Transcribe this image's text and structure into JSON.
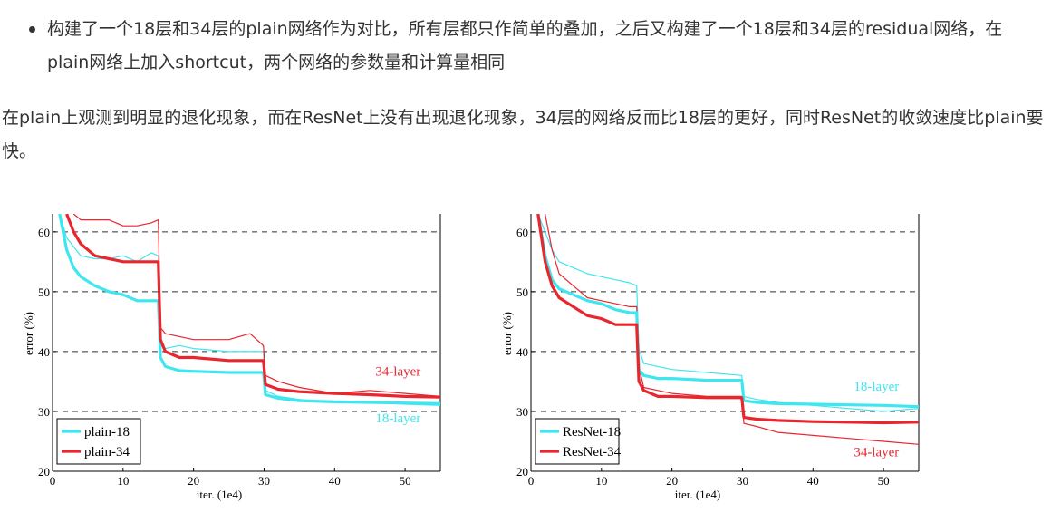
{
  "bullet": "构建了一个18层和34层的plain网络作为对比，所有层都只作简单的叠加，之后又构建了一个18层和34层的residual网络，在plain网络上加入shortcut，两个网络的参数量和计算量相同",
  "paragraph": "在plain上观测到明显的退化现象，而在ResNet上没有出现退化现象，34层的网络反而比18层的更好，同时ResNet的收敛速度比plain要快。",
  "colors": {
    "cyan": "#3ee6f0",
    "red": "#e8262e",
    "grid": "#333333"
  },
  "chart_data": [
    {
      "type": "line",
      "name": "plain",
      "xlabel": "iter. (1e4)",
      "ylabel": "error (%)",
      "xlim": [
        0,
        55
      ],
      "ylim": [
        20,
        63
      ],
      "xticks": [
        0,
        10,
        20,
        30,
        40,
        50
      ],
      "yticks": [
        20,
        30,
        40,
        50,
        60
      ],
      "legend": [
        "plain-18",
        "plain-34"
      ],
      "legend_position": "bottom-left",
      "annotations": [
        {
          "text": "34-layer",
          "color": "red",
          "x": 49,
          "y": 36
        },
        {
          "text": "18-layer",
          "color": "cyan",
          "x": 49,
          "y": 28.2
        }
      ],
      "series": [
        {
          "name": "plain-18 train",
          "color": "cyan",
          "width": "thick",
          "x": [
            1,
            2,
            3,
            4,
            6,
            8,
            10,
            12,
            14,
            15,
            15.3,
            16,
            18,
            20,
            25,
            29.9,
            30.2,
            32,
            35,
            40,
            45,
            50,
            55
          ],
          "y": [
            63,
            57,
            54,
            52.5,
            51,
            50,
            49.5,
            48.5,
            48.5,
            48.5,
            39,
            37.5,
            36.8,
            36.7,
            36.5,
            36.5,
            32.8,
            32.2,
            31.8,
            31.6,
            31.5,
            31.4,
            31.3
          ]
        },
        {
          "name": "plain-18 val",
          "color": "cyan",
          "width": "thin",
          "x": [
            1,
            2,
            4,
            6,
            8,
            10,
            12,
            14,
            15,
            15.3,
            16,
            18,
            20,
            25,
            29.9,
            30.2,
            32,
            35,
            40,
            45,
            50,
            55
          ],
          "y": [
            63,
            59,
            56,
            55.5,
            55.5,
            56,
            55,
            56.5,
            56,
            41,
            40.5,
            41,
            40.5,
            40,
            40,
            33.5,
            32.5,
            32,
            31.5,
            31.5,
            31.2,
            31
          ]
        },
        {
          "name": "plain-34 train",
          "color": "red",
          "width": "thick",
          "x": [
            2,
            3,
            4,
            6,
            8,
            10,
            12,
            14,
            15,
            15.3,
            16,
            18,
            20,
            25,
            29.9,
            30.2,
            32,
            35,
            40,
            45,
            50,
            55
          ],
          "y": [
            63,
            60,
            58,
            56,
            55.5,
            55,
            55,
            55,
            55,
            42,
            40,
            39,
            39,
            38.5,
            38.5,
            34.5,
            33.7,
            33.3,
            33,
            32.8,
            32.5,
            32.4
          ]
        },
        {
          "name": "plain-34 val",
          "color": "red",
          "width": "thin",
          "x": [
            3,
            4,
            6,
            8,
            10,
            12,
            14,
            15,
            15.3,
            16,
            18,
            20,
            25,
            28,
            29.9,
            30.2,
            32,
            35,
            40,
            45,
            50,
            55
          ],
          "y": [
            63,
            62,
            62,
            62,
            61,
            61,
            61.5,
            62,
            44,
            43,
            42.5,
            42,
            42,
            43,
            41,
            36,
            35,
            34,
            33,
            33.5,
            33,
            32.5
          ]
        }
      ]
    },
    {
      "type": "line",
      "name": "resnet",
      "xlabel": "iter. (1e4)",
      "ylabel": "error (%)",
      "xlim": [
        0,
        55
      ],
      "ylim": [
        20,
        63
      ],
      "xticks": [
        0,
        10,
        20,
        30,
        40,
        50
      ],
      "yticks": [
        20,
        30,
        40,
        50,
        60
      ],
      "legend": [
        "ResNet-18",
        "ResNet-34"
      ],
      "legend_position": "bottom-left",
      "annotations": [
        {
          "text": "18-layer",
          "color": "cyan",
          "x": 49,
          "y": 33.5
        },
        {
          "text": "34-layer",
          "color": "red",
          "x": 49,
          "y": 22.5
        }
      ],
      "series": [
        {
          "name": "ResNet-18 train",
          "color": "cyan",
          "width": "thick",
          "x": [
            1,
            2,
            3,
            4,
            6,
            8,
            10,
            12,
            14,
            15,
            15.3,
            16,
            18,
            20,
            25,
            29.9,
            30.2,
            32,
            35,
            40,
            45,
            50,
            55
          ],
          "y": [
            63,
            56,
            52,
            50.5,
            49.5,
            48.5,
            48,
            47,
            46.5,
            46.5,
            37,
            36,
            35.5,
            35.5,
            35.2,
            35.2,
            31.8,
            31.5,
            31.3,
            31.2,
            31.1,
            31,
            30.8
          ]
        },
        {
          "name": "ResNet-18 val",
          "color": "cyan",
          "width": "thin",
          "x": [
            1,
            2,
            3,
            4,
            6,
            8,
            10,
            12,
            14,
            15,
            15.3,
            16,
            18,
            20,
            25,
            29.9,
            30.2,
            32,
            35,
            40,
            45,
            50,
            55
          ],
          "y": [
            63,
            60,
            57,
            55,
            54,
            53,
            52.5,
            52,
            51.5,
            51,
            40.5,
            38,
            37.5,
            37,
            36.5,
            36,
            32.5,
            32,
            31.5,
            31,
            30.5,
            30,
            30.5
          ]
        },
        {
          "name": "ResNet-34 train",
          "color": "red",
          "width": "thick",
          "x": [
            1,
            2,
            3,
            4,
            6,
            8,
            10,
            12,
            14,
            15,
            15.3,
            16,
            18,
            20,
            25,
            29.9,
            30.2,
            32,
            35,
            40,
            45,
            50,
            55
          ],
          "y": [
            63,
            55,
            51,
            49,
            47.5,
            46,
            45.5,
            44.5,
            44.5,
            44.5,
            35,
            33.5,
            32.5,
            32.5,
            32.3,
            32.3,
            29,
            28.7,
            28.5,
            28.3,
            28.2,
            28.1,
            28.2
          ]
        },
        {
          "name": "ResNet-34 val",
          "color": "red",
          "width": "thin",
          "x": [
            2,
            3,
            4,
            6,
            8,
            10,
            12,
            14,
            15,
            15.3,
            16,
            18,
            20,
            25,
            29.9,
            30.2,
            32,
            35,
            40,
            45,
            50,
            55
          ],
          "y": [
            63,
            57,
            53,
            51,
            49,
            48.5,
            48,
            47.5,
            47.5,
            37.5,
            34,
            33.5,
            33,
            32.5,
            32.5,
            28,
            27.5,
            26.5,
            26,
            25.5,
            25,
            24.5
          ]
        }
      ]
    }
  ]
}
